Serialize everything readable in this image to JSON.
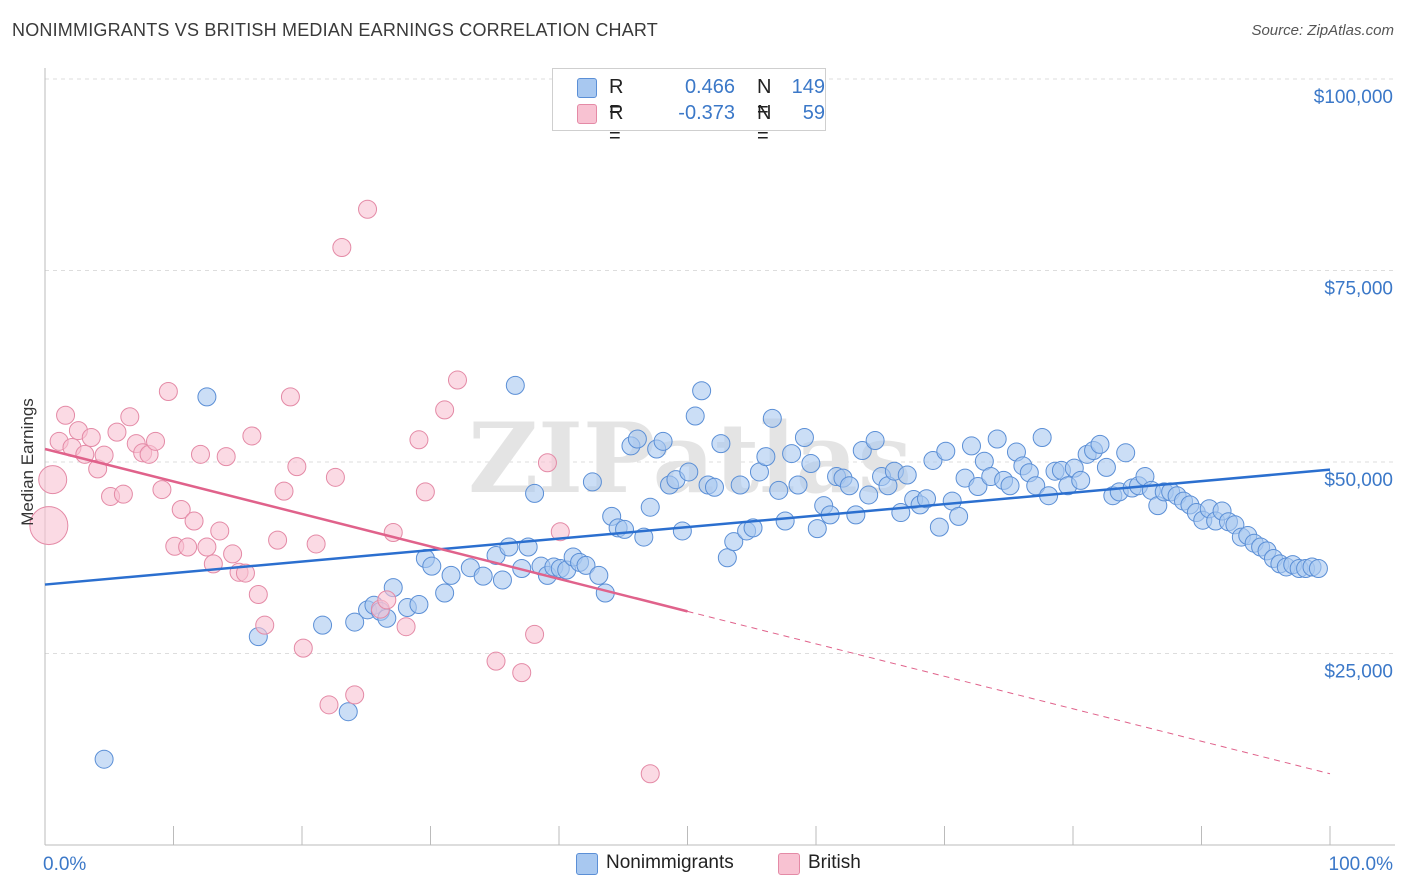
{
  "title": "NONIMMIGRANTS VS BRITISH MEDIAN EARNINGS CORRELATION CHART",
  "source": "Source: ZipAtlas.com",
  "legend": {
    "rows": [
      {
        "r_label": "R =",
        "r_value": "0.466",
        "n_label": "N =",
        "n_value": "149"
      },
      {
        "r_label": "R =",
        "r_value": "-0.373",
        "n_label": "N =",
        "n_value": "59"
      }
    ]
  },
  "bottom_legend": {
    "series1": "Nonimmigrants",
    "series2": "British"
  },
  "colors": {
    "blue_fill": "#a8c8f0",
    "blue_stroke": "#5b8fd6",
    "blue_line": "#2b6fcf",
    "pink_fill": "#f8c2d2",
    "pink_stroke": "#e48aa6",
    "pink_line": "#e0628b",
    "tick_text": "#3b78c8",
    "grid": "#dddddd"
  },
  "watermark": "ZIPatlas",
  "chart_data": {
    "type": "scatter",
    "title": "NONIMMIGRANTS VS BRITISH MEDIAN EARNINGS CORRELATION CHART",
    "xlabel": "",
    "ylabel": "Median Earnings",
    "xlim": [
      0,
      100
    ],
    "ylim": [
      0,
      105000
    ],
    "x_tick_labels": [
      "0.0%",
      "100.0%"
    ],
    "y_ticks": [
      25000,
      50000,
      75000,
      100000
    ],
    "y_tick_labels": [
      "$25,000",
      "$50,000",
      "$75,000",
      "$100,000"
    ],
    "grid": true,
    "legend_position": "top-center",
    "series": [
      {
        "name": "Nonimmigrants",
        "trend": {
          "x": [
            0,
            100
          ],
          "y": [
            34000,
            49000
          ]
        },
        "points": [
          [
            4.6,
            11200
          ],
          [
            12.6,
            58500
          ],
          [
            16.6,
            27200
          ],
          [
            21.6,
            28700
          ],
          [
            23.6,
            17400
          ],
          [
            24.1,
            29100
          ],
          [
            25.1,
            30700
          ],
          [
            25.6,
            31300
          ],
          [
            26.1,
            30500
          ],
          [
            26.6,
            29600
          ],
          [
            27.1,
            33600
          ],
          [
            28.2,
            31000
          ],
          [
            29.1,
            31400
          ],
          [
            29.6,
            37400
          ],
          [
            30.1,
            36400
          ],
          [
            31.1,
            32900
          ],
          [
            31.6,
            35200
          ],
          [
            33.1,
            36200
          ],
          [
            34.1,
            35100
          ],
          [
            35.1,
            37800
          ],
          [
            35.6,
            34600
          ],
          [
            36.1,
            38900
          ],
          [
            36.6,
            60000
          ],
          [
            37.1,
            36100
          ],
          [
            37.6,
            38900
          ],
          [
            38.1,
            45900
          ],
          [
            38.6,
            36400
          ],
          [
            39.1,
            35200
          ],
          [
            39.6,
            36300
          ],
          [
            40.1,
            36100
          ],
          [
            40.6,
            35900
          ],
          [
            41.1,
            37600
          ],
          [
            41.6,
            36900
          ],
          [
            42.1,
            36500
          ],
          [
            42.6,
            47400
          ],
          [
            43.1,
            35200
          ],
          [
            43.6,
            32900
          ],
          [
            44.1,
            42900
          ],
          [
            44.6,
            41400
          ],
          [
            45.1,
            41200
          ],
          [
            45.6,
            52100
          ],
          [
            46.1,
            53000
          ],
          [
            46.6,
            40200
          ],
          [
            47.1,
            44100
          ],
          [
            47.6,
            51700
          ],
          [
            48.1,
            52700
          ],
          [
            48.6,
            47000
          ],
          [
            49.1,
            47700
          ],
          [
            49.6,
            41000
          ],
          [
            50.1,
            48700
          ],
          [
            50.6,
            56000
          ],
          [
            51.1,
            59300
          ],
          [
            51.6,
            47000
          ],
          [
            52.1,
            46700
          ],
          [
            52.6,
            52400
          ],
          [
            53.1,
            37500
          ],
          [
            53.6,
            39600
          ],
          [
            54.1,
            47000
          ],
          [
            54.6,
            41000
          ],
          [
            55.1,
            41400
          ],
          [
            55.6,
            48700
          ],
          [
            56.1,
            50700
          ],
          [
            56.6,
            55700
          ],
          [
            57.1,
            46300
          ],
          [
            57.6,
            42300
          ],
          [
            58.1,
            51100
          ],
          [
            58.6,
            47000
          ],
          [
            59.1,
            53200
          ],
          [
            59.6,
            49800
          ],
          [
            60.1,
            41300
          ],
          [
            60.6,
            44300
          ],
          [
            61.1,
            43100
          ],
          [
            61.6,
            48100
          ],
          [
            62.1,
            47900
          ],
          [
            62.6,
            46900
          ],
          [
            63.1,
            43100
          ],
          [
            63.6,
            51500
          ],
          [
            64.1,
            45700
          ],
          [
            64.6,
            52800
          ],
          [
            65.1,
            48100
          ],
          [
            65.6,
            46900
          ],
          [
            66.1,
            48800
          ],
          [
            66.6,
            43400
          ],
          [
            67.1,
            48300
          ],
          [
            67.6,
            45100
          ],
          [
            68.1,
            44400
          ],
          [
            68.6,
            45200
          ],
          [
            69.1,
            50200
          ],
          [
            69.6,
            41500
          ],
          [
            70.1,
            51400
          ],
          [
            70.6,
            44900
          ],
          [
            71.1,
            42900
          ],
          [
            71.6,
            47900
          ],
          [
            72.1,
            52100
          ],
          [
            72.6,
            46800
          ],
          [
            73.1,
            50100
          ],
          [
            73.6,
            48100
          ],
          [
            74.1,
            53000
          ],
          [
            74.6,
            47600
          ],
          [
            75.1,
            46900
          ],
          [
            75.6,
            51300
          ],
          [
            76.1,
            49500
          ],
          [
            76.6,
            48600
          ],
          [
            77.1,
            46900
          ],
          [
            77.6,
            53200
          ],
          [
            78.1,
            45600
          ],
          [
            78.6,
            48800
          ],
          [
            79.1,
            48900
          ],
          [
            79.6,
            46900
          ],
          [
            80.1,
            49200
          ],
          [
            80.6,
            47600
          ],
          [
            81.1,
            51000
          ],
          [
            81.6,
            51500
          ],
          [
            82.1,
            52300
          ],
          [
            82.6,
            49300
          ],
          [
            83.1,
            45600
          ],
          [
            83.6,
            46100
          ],
          [
            84.1,
            51200
          ],
          [
            84.6,
            46600
          ],
          [
            85.1,
            46900
          ],
          [
            85.6,
            48100
          ],
          [
            86.1,
            46300
          ],
          [
            86.6,
            44300
          ],
          [
            87.1,
            46100
          ],
          [
            87.6,
            46100
          ],
          [
            88.1,
            45600
          ],
          [
            88.6,
            44900
          ],
          [
            89.1,
            44400
          ],
          [
            89.6,
            43400
          ],
          [
            90.1,
            42400
          ],
          [
            90.6,
            43900
          ],
          [
            91.1,
            42300
          ],
          [
            91.6,
            43600
          ],
          [
            92.1,
            42200
          ],
          [
            92.6,
            41800
          ],
          [
            93.1,
            40200
          ],
          [
            93.6,
            40400
          ],
          [
            94.1,
            39400
          ],
          [
            94.6,
            38900
          ],
          [
            95.1,
            38400
          ],
          [
            95.6,
            37400
          ],
          [
            96.1,
            36700
          ],
          [
            96.6,
            36300
          ],
          [
            97.1,
            36600
          ],
          [
            97.6,
            36100
          ],
          [
            98.1,
            36100
          ],
          [
            98.6,
            36300
          ],
          [
            99.1,
            36100
          ]
        ]
      },
      {
        "name": "British",
        "trend": {
          "x": [
            0,
            50
          ],
          "y": [
            51700,
            30500
          ]
        },
        "trend_dashed": {
          "x": [
            50,
            100
          ],
          "y": [
            30500,
            9300
          ]
        },
        "points": [
          [
            0.3,
            41700
          ],
          [
            0.6,
            47700
          ],
          [
            1.1,
            52700
          ],
          [
            1.6,
            56100
          ],
          [
            2.1,
            51900
          ],
          [
            2.6,
            54100
          ],
          [
            3.1,
            51000
          ],
          [
            3.6,
            53200
          ],
          [
            4.1,
            49100
          ],
          [
            4.6,
            50900
          ],
          [
            5.1,
            45500
          ],
          [
            5.6,
            53900
          ],
          [
            6.1,
            45800
          ],
          [
            6.6,
            55900
          ],
          [
            7.1,
            52400
          ],
          [
            7.6,
            51200
          ],
          [
            8.1,
            51000
          ],
          [
            8.6,
            52700
          ],
          [
            9.1,
            46400
          ],
          [
            9.6,
            59200
          ],
          [
            10.1,
            39000
          ],
          [
            10.6,
            43800
          ],
          [
            11.1,
            38900
          ],
          [
            11.6,
            42300
          ],
          [
            12.1,
            51000
          ],
          [
            12.6,
            38900
          ],
          [
            13.1,
            36700
          ],
          [
            13.6,
            41000
          ],
          [
            14.1,
            50700
          ],
          [
            14.6,
            38000
          ],
          [
            15.1,
            35600
          ],
          [
            15.6,
            35500
          ],
          [
            16.1,
            53400
          ],
          [
            16.6,
            32700
          ],
          [
            17.1,
            28700
          ],
          [
            18.1,
            39800
          ],
          [
            18.6,
            46200
          ],
          [
            19.1,
            58500
          ],
          [
            19.6,
            49400
          ],
          [
            20.1,
            25700
          ],
          [
            21.1,
            39300
          ],
          [
            22.1,
            18300
          ],
          [
            22.6,
            48000
          ],
          [
            23.1,
            78000
          ],
          [
            24.1,
            19600
          ],
          [
            25.1,
            83000
          ],
          [
            26.1,
            30800
          ],
          [
            26.6,
            32000
          ],
          [
            27.1,
            40800
          ],
          [
            28.1,
            28500
          ],
          [
            29.1,
            52900
          ],
          [
            29.6,
            46100
          ],
          [
            31.1,
            56800
          ],
          [
            32.1,
            60700
          ],
          [
            35.1,
            24000
          ],
          [
            37.1,
            22500
          ],
          [
            38.1,
            27500
          ],
          [
            39.1,
            49900
          ],
          [
            40.1,
            40900
          ],
          [
            47.1,
            9300
          ]
        ]
      }
    ]
  }
}
